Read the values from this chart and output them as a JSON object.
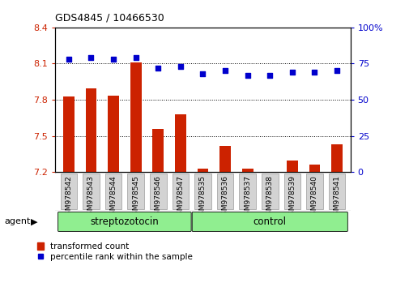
{
  "title": "GDS4845 / 10466530",
  "samples": [
    "GSM978542",
    "GSM978543",
    "GSM978544",
    "GSM978545",
    "GSM978546",
    "GSM978547",
    "GSM978535",
    "GSM978536",
    "GSM978537",
    "GSM978538",
    "GSM978539",
    "GSM978540",
    "GSM978541"
  ],
  "groups": [
    "streptozotocin",
    "streptozotocin",
    "streptozotocin",
    "streptozotocin",
    "streptozotocin",
    "streptozotocin",
    "control",
    "control",
    "control",
    "control",
    "control",
    "control",
    "control"
  ],
  "transformed_count": [
    7.825,
    7.895,
    7.835,
    8.11,
    7.56,
    7.68,
    7.23,
    7.42,
    7.23,
    7.2,
    7.3,
    7.26,
    7.43
  ],
  "percentile_rank": [
    78,
    79,
    78,
    79,
    72,
    73,
    68,
    70,
    67,
    67,
    69,
    69,
    70
  ],
  "ylim_left": [
    7.2,
    8.4
  ],
  "ylim_right": [
    0,
    100
  ],
  "yticks_left": [
    7.2,
    7.5,
    7.8,
    8.1,
    8.4
  ],
  "yticks_right": [
    0,
    25,
    50,
    75,
    100
  ],
  "bar_color": "#cc2200",
  "dot_color": "#0000cc",
  "group_color": "#90ee90",
  "group_label_streptozotocin": "streptozotocin",
  "group_label_control": "control",
  "agent_label": "agent",
  "legend_bar": "transformed count",
  "legend_dot": "percentile rank within the sample",
  "background_color": "#ffffff",
  "tick_color_left": "#cc2200",
  "tick_color_right": "#0000cc",
  "sample_bg_color": "#d3d3d3",
  "grid_yticks": [
    7.5,
    7.8,
    8.1
  ]
}
